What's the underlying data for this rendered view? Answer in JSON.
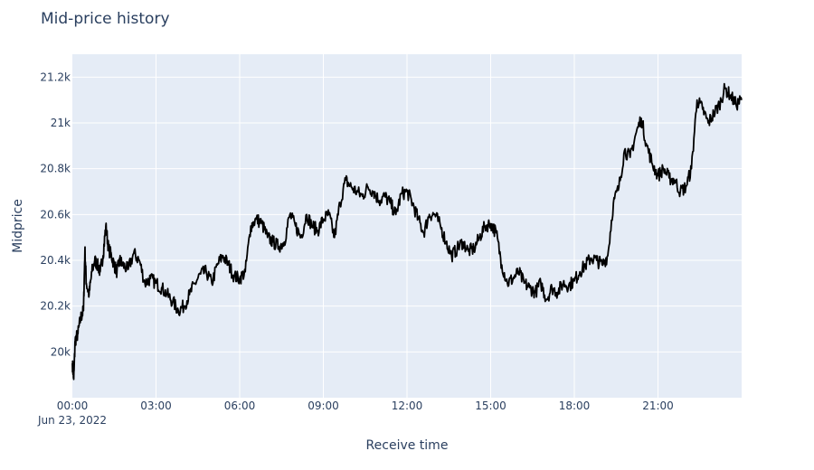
{
  "chart_data": {
    "type": "line",
    "title": "Mid-price history",
    "xlabel": "Receive time",
    "ylabel": "Midprice",
    "x_date_label": "Jun 23, 2022",
    "x_ticks": [
      "00:00",
      "03:00",
      "06:00",
      "09:00",
      "12:00",
      "15:00",
      "18:00",
      "21:00"
    ],
    "x_tick_hours": [
      0,
      3,
      6,
      9,
      12,
      15,
      18,
      21
    ],
    "xlim_hours": [
      0,
      24
    ],
    "y_ticks": [
      "20k",
      "20.2k",
      "20.4k",
      "20.6k",
      "20.8k",
      "21k",
      "21.2k"
    ],
    "y_tick_values": [
      20000,
      20200,
      20400,
      20600,
      20800,
      21000,
      21200
    ],
    "ylim": [
      19800,
      21300
    ],
    "grid": true,
    "line_color": "#000000",
    "plot_bg": "#e5ecf6",
    "series": [
      {
        "x": [
          0.0,
          0.05,
          0.1,
          0.2,
          0.3,
          0.4,
          0.45,
          0.5,
          0.6,
          0.7,
          0.8,
          0.9,
          1.0,
          1.1,
          1.2,
          1.3,
          1.4,
          1.5,
          1.6,
          1.7,
          1.8,
          2.0,
          2.2,
          2.4,
          2.6,
          2.8,
          3.0,
          3.2,
          3.4,
          3.6,
          3.8,
          4.0,
          4.2,
          4.4,
          4.6,
          4.8,
          5.0,
          5.2,
          5.4,
          5.6,
          5.8,
          6.0,
          6.2,
          6.4,
          6.6,
          6.8,
          7.0,
          7.2,
          7.4,
          7.6,
          7.8,
          8.0,
          8.2,
          8.4,
          8.6,
          8.8,
          9.0,
          9.2,
          9.4,
          9.6,
          9.8,
          10.0,
          10.2,
          10.4,
          10.6,
          10.8,
          11.0,
          11.2,
          11.4,
          11.6,
          11.8,
          12.0,
          12.2,
          12.4,
          12.6,
          12.8,
          13.0,
          13.2,
          13.4,
          13.6,
          13.8,
          14.0,
          14.2,
          14.4,
          14.6,
          14.8,
          15.0,
          15.2,
          15.4,
          15.6,
          15.8,
          16.0,
          16.2,
          16.4,
          16.6,
          16.8,
          17.0,
          17.2,
          17.4,
          17.6,
          17.8,
          18.0,
          18.2,
          18.4,
          18.6,
          18.8,
          19.0,
          19.2,
          19.4,
          19.6,
          19.8,
          20.0,
          20.2,
          20.4,
          20.6,
          20.8,
          21.0,
          21.2,
          21.4,
          21.6,
          21.8,
          22.0,
          22.2,
          22.4,
          22.6,
          22.8,
          23.0,
          23.2,
          23.4,
          23.6,
          23.8,
          24.0
        ],
        "y": [
          19950,
          19880,
          20050,
          20080,
          20150,
          20180,
          20450,
          20300,
          20250,
          20350,
          20400,
          20380,
          20350,
          20420,
          20550,
          20450,
          20420,
          20380,
          20350,
          20400,
          20380,
          20360,
          20430,
          20400,
          20300,
          20320,
          20300,
          20280,
          20250,
          20220,
          20180,
          20200,
          20250,
          20300,
          20340,
          20350,
          20300,
          20380,
          20420,
          20380,
          20330,
          20320,
          20350,
          20550,
          20580,
          20560,
          20500,
          20480,
          20460,
          20480,
          20600,
          20550,
          20500,
          20600,
          20550,
          20530,
          20580,
          20600,
          20500,
          20650,
          20750,
          20720,
          20700,
          20680,
          20720,
          20700,
          20660,
          20680,
          20650,
          20600,
          20690,
          20700,
          20650,
          20580,
          20520,
          20600,
          20600,
          20550,
          20480,
          20420,
          20450,
          20480,
          20440,
          20450,
          20500,
          20550,
          20560,
          20520,
          20380,
          20300,
          20320,
          20350,
          20300,
          20280,
          20260,
          20300,
          20230,
          20280,
          20260,
          20300,
          20290,
          20310,
          20350,
          20380,
          20410,
          20400,
          20380,
          20420,
          20650,
          20720,
          20880,
          20850,
          20950,
          21020,
          20900,
          20820,
          20770,
          20800,
          20760,
          20750,
          20700,
          20720,
          20800,
          21100,
          21060,
          21000,
          21040,
          21080,
          21150,
          21120,
          21080,
          21100
        ]
      }
    ]
  }
}
